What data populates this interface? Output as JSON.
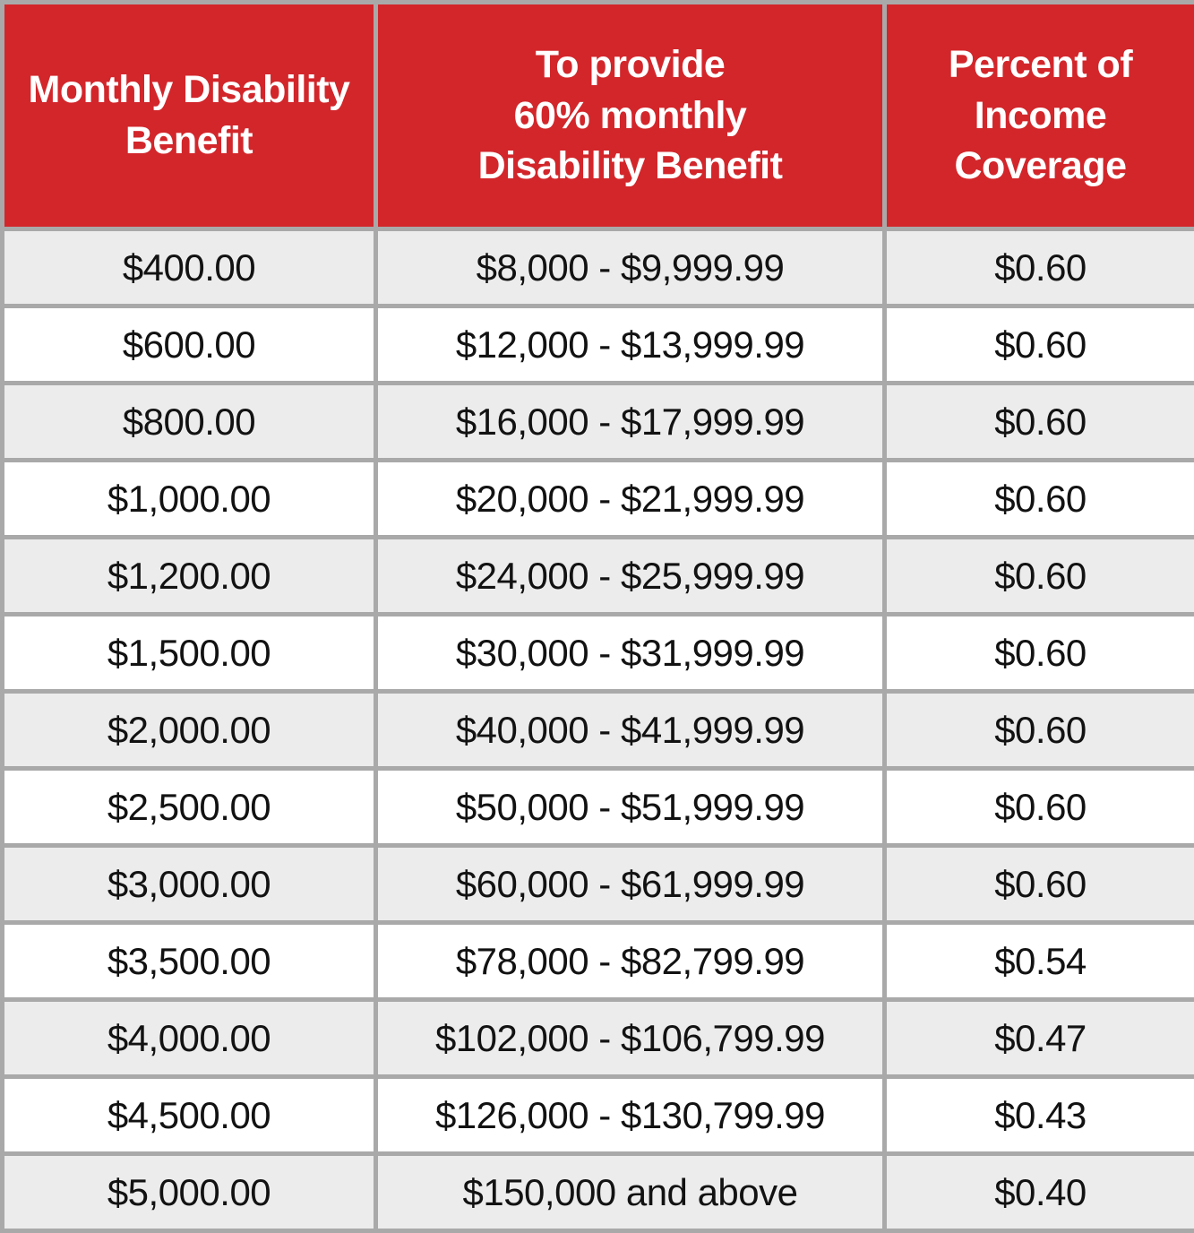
{
  "colors": {
    "header_background": "#d2262b",
    "header_text": "#ffffff",
    "border": "#a9a9a9",
    "row_stripe": "#ececec",
    "row_white": "#ffffff",
    "body_text": "#121212"
  },
  "table": {
    "columns": [
      {
        "header": "Monthly Disability\nBenefit"
      },
      {
        "header": "To provide\n60% monthly\nDisability Benefit"
      },
      {
        "header": "Percent of\nIncome\nCoverage"
      }
    ],
    "rows": [
      [
        "$400.00",
        "$8,000 - $9,999.99",
        "$0.60"
      ],
      [
        "$600.00",
        "$12,000 - $13,999.99",
        "$0.60"
      ],
      [
        "$800.00",
        "$16,000 - $17,999.99",
        "$0.60"
      ],
      [
        "$1,000.00",
        "$20,000 - $21,999.99",
        "$0.60"
      ],
      [
        "$1,200.00",
        "$24,000 - $25,999.99",
        "$0.60"
      ],
      [
        "$1,500.00",
        "$30,000 - $31,999.99",
        "$0.60"
      ],
      [
        "$2,000.00",
        "$40,000 - $41,999.99",
        "$0.60"
      ],
      [
        "$2,500.00",
        "$50,000 - $51,999.99",
        "$0.60"
      ],
      [
        "$3,000.00",
        "$60,000 - $61,999.99",
        "$0.60"
      ],
      [
        "$3,500.00",
        "$78,000 - $82,799.99",
        "$0.54"
      ],
      [
        "$4,000.00",
        "$102,000 - $106,799.99",
        "$0.47"
      ],
      [
        "$4,500.00",
        "$126,000 - $130,799.99",
        "$0.43"
      ],
      [
        "$5,000.00",
        "$150,000 and above",
        "$0.40"
      ]
    ]
  },
  "chart_data": {
    "type": "table",
    "title": "",
    "columns": [
      "Monthly Disability Benefit",
      "To provide 60% monthly Disability Benefit",
      "Percent of Income Coverage"
    ],
    "rows": [
      [
        "$400.00",
        "$8,000 - $9,999.99",
        "$0.60"
      ],
      [
        "$600.00",
        "$12,000 - $13,999.99",
        "$0.60"
      ],
      [
        "$800.00",
        "$16,000 - $17,999.99",
        "$0.60"
      ],
      [
        "$1,000.00",
        "$20,000 - $21,999.99",
        "$0.60"
      ],
      [
        "$1,200.00",
        "$24,000 - $25,999.99",
        "$0.60"
      ],
      [
        "$1,500.00",
        "$30,000 - $31,999.99",
        "$0.60"
      ],
      [
        "$2,000.00",
        "$40,000 - $41,999.99",
        "$0.60"
      ],
      [
        "$2,500.00",
        "$50,000 - $51,999.99",
        "$0.60"
      ],
      [
        "$3,000.00",
        "$60,000 - $61,999.99",
        "$0.60"
      ],
      [
        "$3,500.00",
        "$78,000 - $82,799.99",
        "$0.54"
      ],
      [
        "$4,000.00",
        "$102,000 - $106,799.99",
        "$0.47"
      ],
      [
        "$4,500.00",
        "$126,000 - $130,799.99",
        "$0.43"
      ],
      [
        "$5,000.00",
        "$150,000 and above",
        "$0.40"
      ]
    ]
  }
}
